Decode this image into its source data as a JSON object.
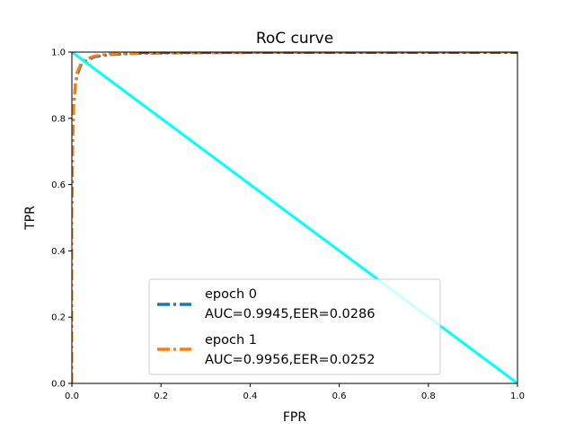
{
  "chart_data": {
    "type": "line",
    "title": "RoC curve",
    "xlabel": "FPR",
    "ylabel": "TPR",
    "xlim": [
      0.0,
      1.0
    ],
    "ylim": [
      0.0,
      1.0
    ],
    "xticks": [
      "0.0",
      "0.2",
      "0.4",
      "0.6",
      "0.8",
      "1.0"
    ],
    "yticks": [
      "0.0",
      "0.2",
      "0.4",
      "0.6",
      "0.8",
      "1.0"
    ],
    "grid": false,
    "legend_position": "bottom-center",
    "reference_line": {
      "color": "#00ffff",
      "points": [
        [
          0.0,
          1.0
        ],
        [
          1.0,
          0.0
        ]
      ]
    },
    "series": [
      {
        "name": "epoch 0",
        "label_line2": "AUC=0.9945,EER=0.0286",
        "color": "#1f77b4",
        "points": [
          [
            0.0,
            0.0
          ],
          [
            0.0,
            0.5
          ],
          [
            0.002,
            0.72
          ],
          [
            0.004,
            0.83
          ],
          [
            0.008,
            0.9
          ],
          [
            0.012,
            0.93
          ],
          [
            0.02,
            0.96
          ],
          [
            0.03,
            0.972
          ],
          [
            0.05,
            0.985
          ],
          [
            0.08,
            0.992
          ],
          [
            0.15,
            0.996
          ],
          [
            0.3,
            0.998
          ],
          [
            0.5,
            0.999
          ],
          [
            1.0,
            1.0
          ]
        ]
      },
      {
        "name": "epoch 1",
        "label_line2": "AUC=0.9956,EER=0.0252",
        "color": "#ff7f0e",
        "points": [
          [
            0.0,
            0.0
          ],
          [
            0.0,
            0.55
          ],
          [
            0.002,
            0.75
          ],
          [
            0.004,
            0.85
          ],
          [
            0.008,
            0.91
          ],
          [
            0.012,
            0.94
          ],
          [
            0.02,
            0.965
          ],
          [
            0.03,
            0.978
          ],
          [
            0.05,
            0.988
          ],
          [
            0.08,
            0.994
          ],
          [
            0.15,
            0.997
          ],
          [
            0.3,
            0.998
          ],
          [
            0.5,
            0.999
          ],
          [
            1.0,
            1.0
          ]
        ]
      }
    ]
  }
}
